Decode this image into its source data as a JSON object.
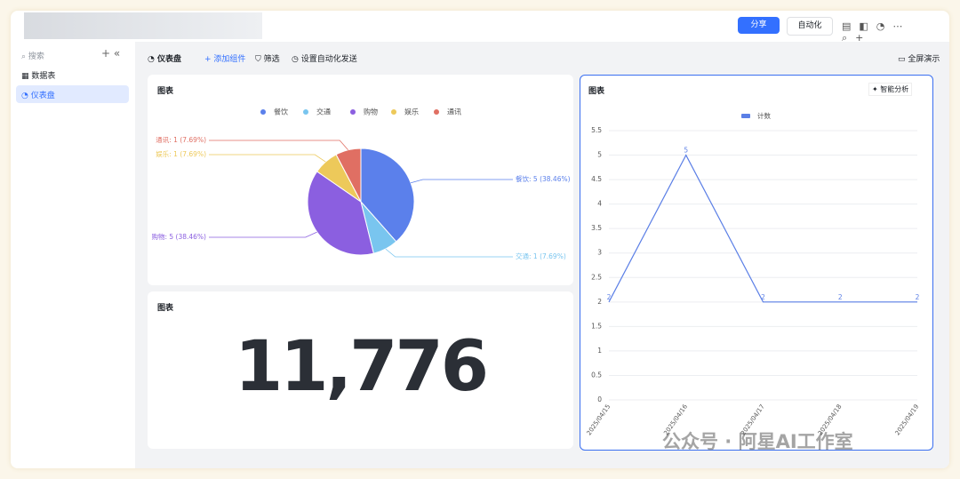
{
  "toolbar": {
    "share": "分享",
    "automation": "自动化"
  },
  "sidebar": {
    "search": "搜索",
    "items": [
      "数据表",
      "仪表盘"
    ]
  },
  "tabs": {
    "title": "仪表盘",
    "add": "添加组件",
    "filter": "筛选",
    "auto_send": "设置自动化发送",
    "fullscreen": "全屏演示"
  },
  "pie_card": {
    "title": "图表",
    "chart_data": {
      "type": "pie",
      "categories": [
        "餐饮",
        "交通",
        "购物",
        "娱乐",
        "通讯"
      ],
      "values": [
        5,
        1,
        5,
        1,
        1
      ],
      "value_labels": [
        "餐饮: 5 (38.46%)",
        "交通: 1 (7.69%)",
        "购物: 5 (38.46%)",
        "娱乐: 1 (7.69%)",
        "通讯: 1 (7.69%)"
      ],
      "colors": [
        "#5b80eb",
        "#79c5ef",
        "#8b5fe0",
        "#edc95a",
        "#e06f63"
      ]
    }
  },
  "number_card": {
    "title": "图表",
    "value": "11,776"
  },
  "line_card": {
    "title": "图表",
    "action": "智能分析",
    "chart_data": {
      "type": "line",
      "x": [
        "2025/04/15",
        "2025/04/16",
        "2025/04/17",
        "2025/04/18",
        "2025/04/19"
      ],
      "series": [
        {
          "name": "计数",
          "color": "#5b7fe6",
          "values": [
            2,
            5,
            2,
            2,
            2
          ]
        }
      ],
      "ylim": [
        0,
        5.5
      ],
      "yticks": [
        0,
        0.5,
        1,
        1.5,
        2,
        2.5,
        3,
        3.5,
        4,
        4.5,
        5,
        5.5
      ],
      "grid": true
    }
  },
  "watermark": "公众号 · 阿星AI工作室"
}
